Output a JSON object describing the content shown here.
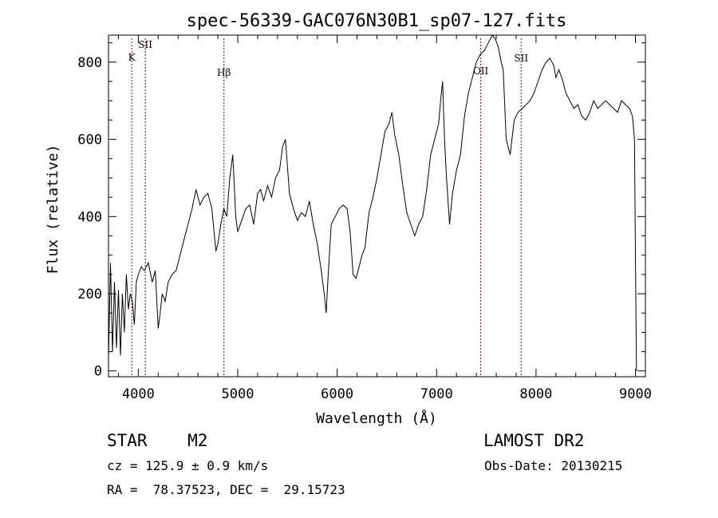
{
  "chart_data": {
    "type": "line",
    "title": "spec-56339-GAC076N30B1_sp07-127.fits",
    "xlabel": "Wavelength (Å)",
    "ylabel": "Flux (relative)",
    "xlim": [
      3700,
      9100
    ],
    "ylim": [
      -15,
      870
    ],
    "xticks": [
      4000,
      5000,
      6000,
      7000,
      8000,
      9000
    ],
    "yticks": [
      0,
      200,
      400,
      600,
      800
    ],
    "grid": false,
    "line_color": "#000000",
    "marker_color": "#8b0000",
    "lines": [
      {
        "label": "K",
        "x": 3934
      },
      {
        "label": "SII",
        "x": 4070
      },
      {
        "label": "Hβ",
        "x": 4861
      },
      {
        "label": "OII",
        "x": 7444
      },
      {
        "label": "SII",
        "x": 7850
      }
    ],
    "series": [
      {
        "x": [
          3700,
          3720,
          3740,
          3760,
          3780,
          3800,
          3820,
          3840,
          3860,
          3880,
          3900,
          3920,
          3940,
          3960,
          3980,
          4000,
          4030,
          4060,
          4100,
          4140,
          4170,
          4200,
          4220,
          4240,
          4270,
          4300,
          4340,
          4380,
          4420,
          4460,
          4500,
          4540,
          4580,
          4620,
          4660,
          4700,
          4740,
          4780,
          4800,
          4830,
          4860,
          4890,
          4920,
          4950,
          4980,
          5000,
          5040,
          5080,
          5120,
          5160,
          5200,
          5230,
          5260,
          5300,
          5340,
          5380,
          5420,
          5450,
          5480,
          5520,
          5560,
          5600,
          5640,
          5680,
          5720,
          5760,
          5800,
          5840,
          5870,
          5890,
          5910,
          5940,
          5980,
          6020,
          6060,
          6100,
          6130,
          6160,
          6190,
          6220,
          6250,
          6280,
          6320,
          6360,
          6400,
          6440,
          6480,
          6520,
          6550,
          6580,
          6620,
          6660,
          6700,
          6740,
          6780,
          6820,
          6860,
          6900,
          6940,
          6980,
          7020,
          7040,
          7060,
          7080,
          7100,
          7130,
          7160,
          7200,
          7240,
          7280,
          7320,
          7360,
          7400,
          7440,
          7480,
          7520,
          7560,
          7590,
          7620,
          7650,
          7670,
          7700,
          7740,
          7780,
          7820,
          7860,
          7900,
          7940,
          7980,
          8020,
          8060,
          8100,
          8140,
          8180,
          8200,
          8230,
          8270,
          8300,
          8340,
          8380,
          8420,
          8460,
          8500,
          8540,
          8580,
          8620,
          8660,
          8700,
          8740,
          8780,
          8820,
          8860,
          8900,
          8940,
          8970,
          8990,
          9000,
          9010
        ],
        "values": [
          30,
          280,
          50,
          230,
          60,
          210,
          40,
          200,
          100,
          250,
          160,
          200,
          180,
          120,
          230,
          250,
          270,
          260,
          280,
          230,
          260,
          110,
          150,
          200,
          180,
          230,
          250,
          260,
          300,
          340,
          380,
          420,
          470,
          430,
          450,
          460,
          420,
          310,
          330,
          380,
          420,
          400,
          500,
          560,
          400,
          360,
          390,
          420,
          430,
          380,
          460,
          470,
          440,
          480,
          450,
          500,
          520,
          580,
          600,
          460,
          420,
          390,
          410,
          400,
          440,
          380,
          330,
          260,
          200,
          150,
          250,
          380,
          400,
          420,
          430,
          420,
          360,
          250,
          240,
          270,
          300,
          320,
          410,
          450,
          500,
          560,
          620,
          640,
          670,
          610,
          560,
          480,
          410,
          380,
          350,
          380,
          400,
          470,
          560,
          600,
          640,
          700,
          750,
          600,
          500,
          380,
          460,
          520,
          560,
          660,
          720,
          760,
          800,
          820,
          830,
          850,
          870,
          860,
          840,
          800,
          780,
          600,
          560,
          650,
          670,
          680,
          690,
          700,
          720,
          750,
          780,
          800,
          810,
          790,
          760,
          780,
          750,
          720,
          700,
          680,
          690,
          660,
          650,
          670,
          700,
          680,
          690,
          700,
          690,
          680,
          670,
          700,
          690,
          680,
          660,
          600,
          300,
          0
        ]
      }
    ]
  },
  "footer": {
    "object": "STAR    M2",
    "survey": "LAMOST DR2",
    "cz": "cz = 125.9 ± 0.9 km/s",
    "obs_date": "Obs-Date: 20130215",
    "coords": "RA =  78.37523, DEC =  29.15723"
  }
}
